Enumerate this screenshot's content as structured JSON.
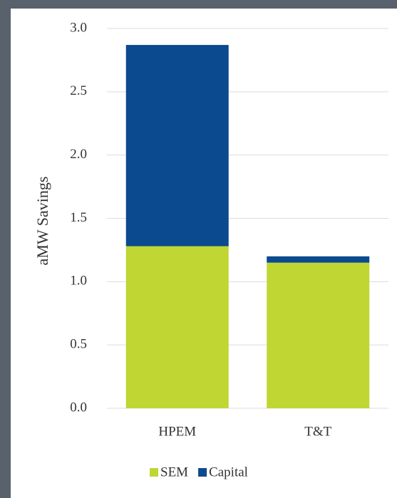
{
  "chart_data": {
    "type": "stacked_bar",
    "y_label": "aMW Savings",
    "categories": [
      "HPEM",
      "T&T"
    ],
    "series": [
      {
        "name": "SEM",
        "color": "#c0d632",
        "values": [
          1.28,
          1.15
        ]
      },
      {
        "name": "Capital",
        "color": "#0b4a8e",
        "values": [
          1.59,
          0.05
        ]
      }
    ],
    "ylim": [
      0,
      3
    ],
    "yticks": [
      {
        "value": 0,
        "label": "0.0"
      },
      0.5,
      {
        "value": 1,
        "label": "1.0"
      },
      1.5,
      {
        "value": 2,
        "label": "2.0"
      },
      2.5,
      {
        "value": 3,
        "label": "3.0"
      }
    ],
    "grid": true,
    "legend": "bottom"
  }
}
